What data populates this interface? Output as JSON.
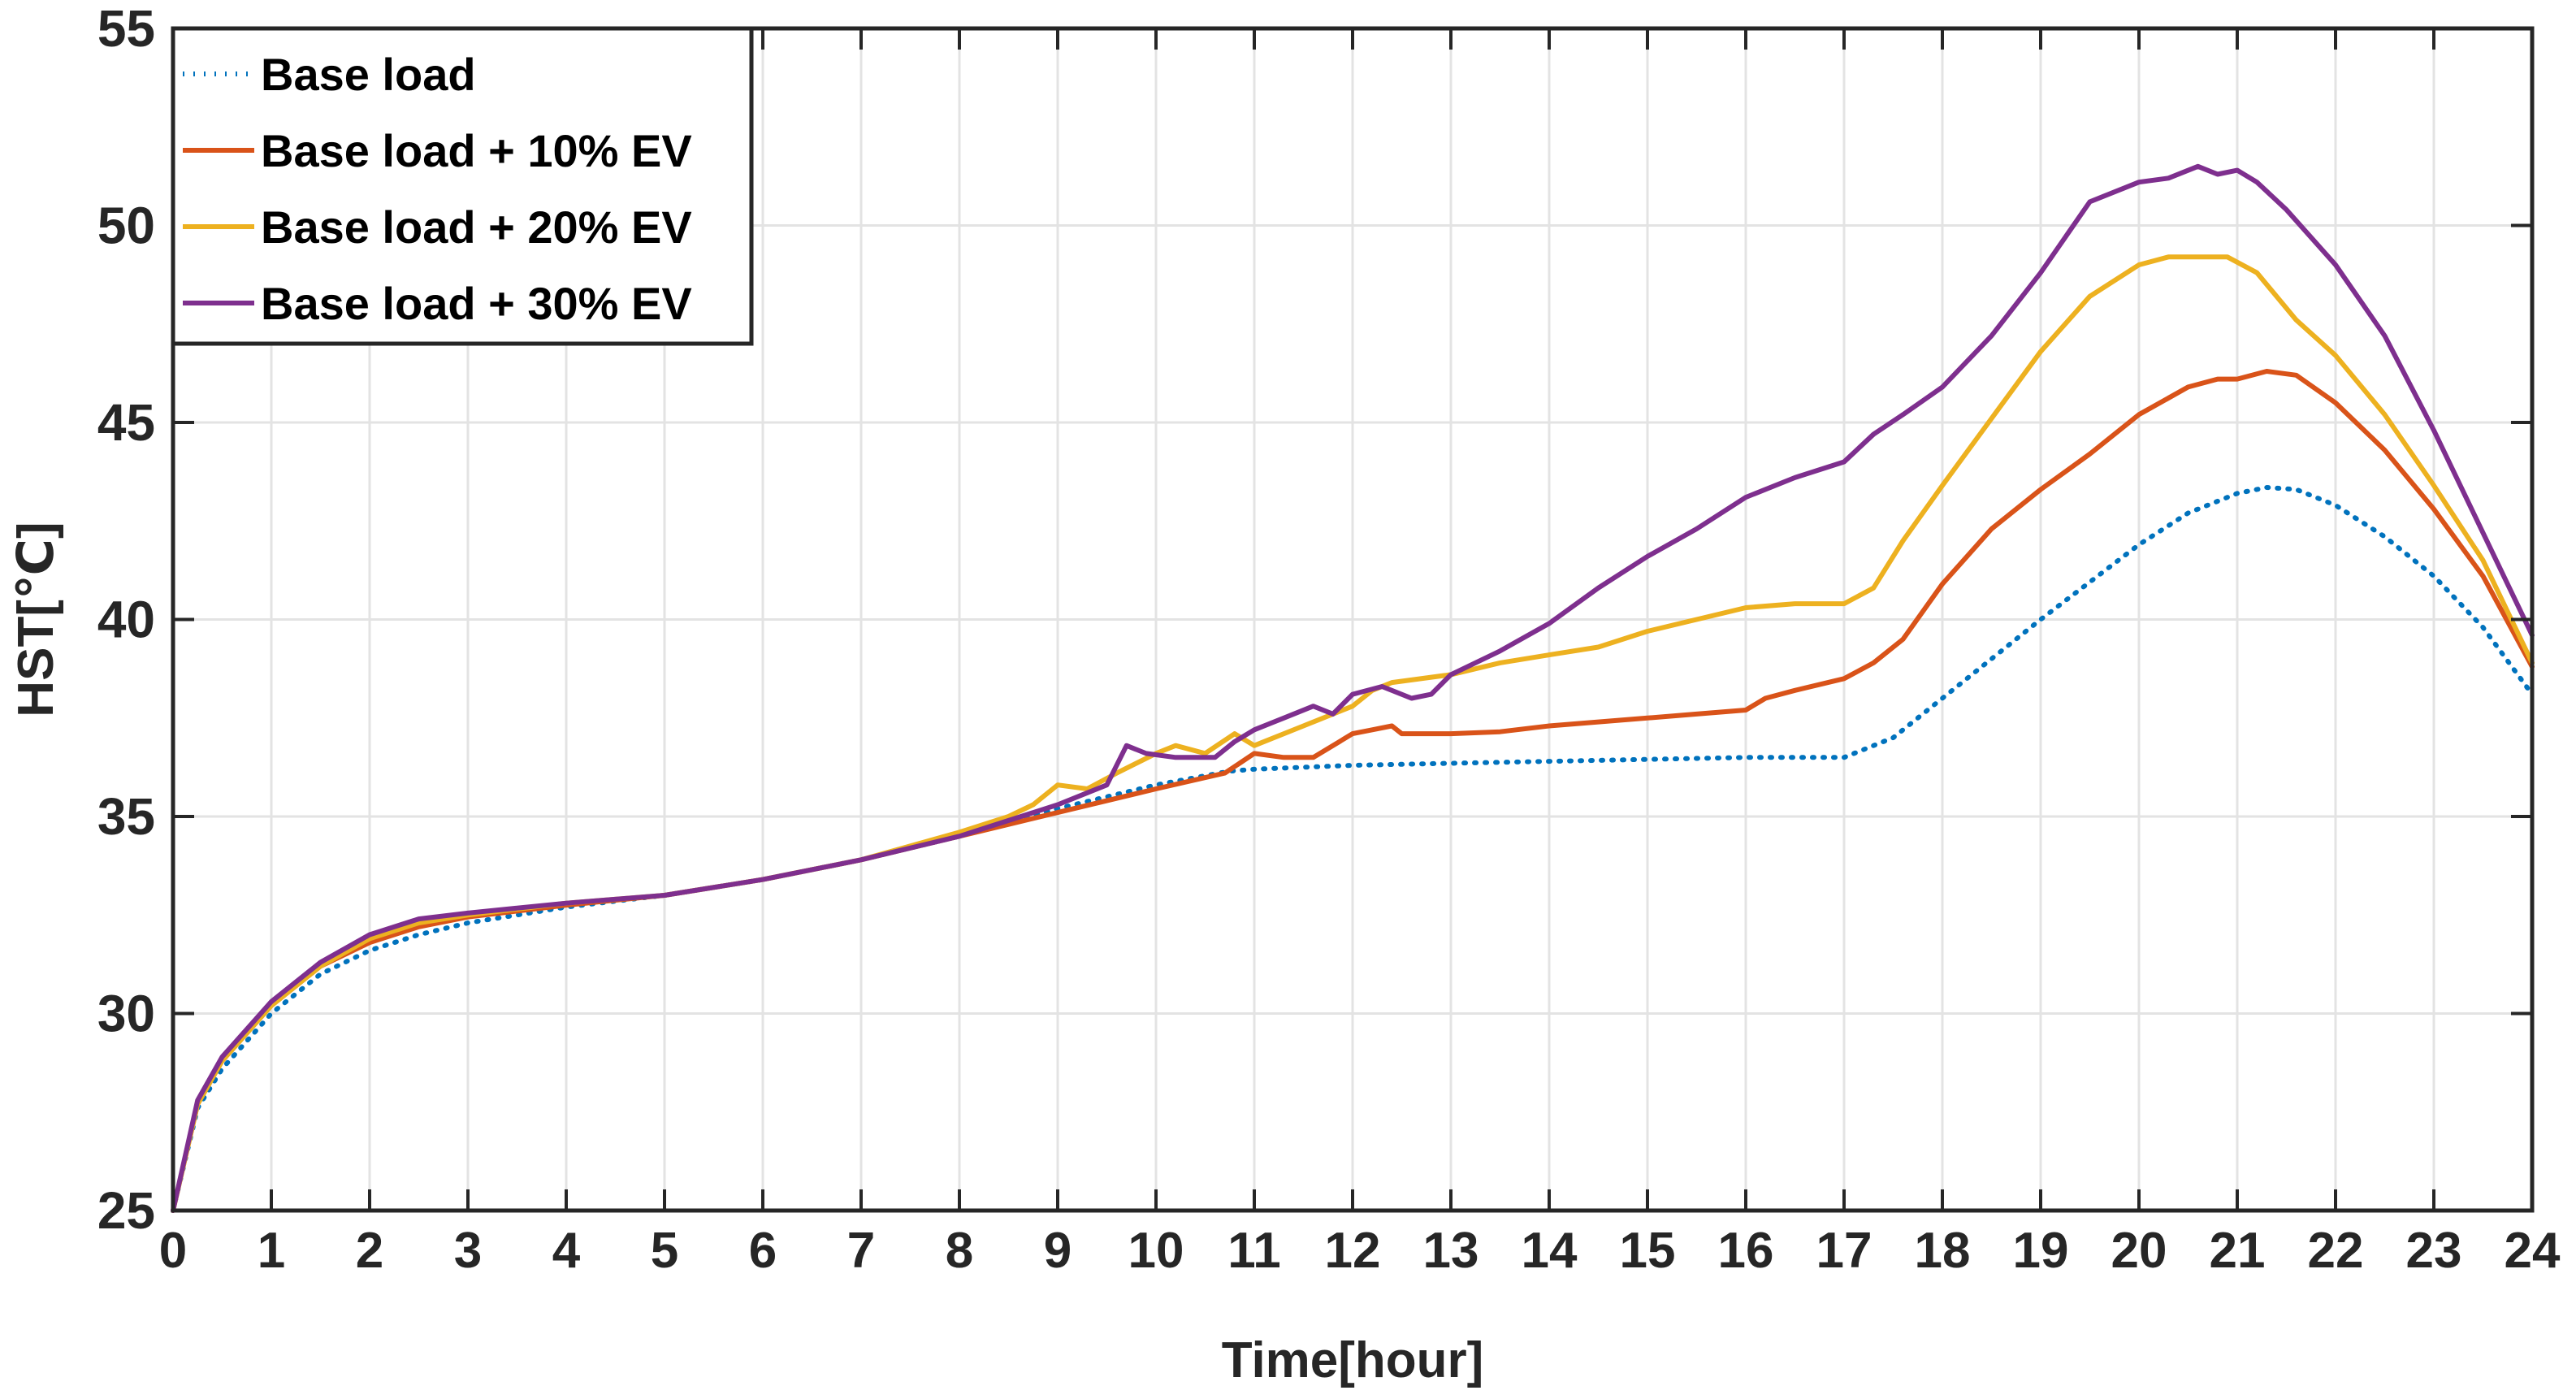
{
  "chart_data": {
    "type": "line",
    "title": "",
    "xlabel": "Time[hour]",
    "ylabel": "HST[℃]",
    "xlim": [
      0,
      24
    ],
    "ylim": [
      25,
      55
    ],
    "xticks": [
      0,
      1,
      2,
      3,
      4,
      5,
      6,
      7,
      8,
      9,
      10,
      11,
      12,
      13,
      14,
      15,
      16,
      17,
      18,
      19,
      20,
      21,
      22,
      23,
      24
    ],
    "yticks": [
      25,
      30,
      35,
      40,
      45,
      50,
      55
    ],
    "grid": true,
    "legend_position": "top-left",
    "series": [
      {
        "name": "Base load",
        "color": "#0072BD",
        "style": "dotted",
        "x": [
          0,
          0.25,
          0.5,
          1,
          1.5,
          2,
          2.5,
          3,
          4,
          5,
          6,
          7,
          8,
          9,
          10,
          10.75,
          11,
          12,
          13,
          14,
          15,
          16,
          17,
          17.5,
          18,
          19,
          20,
          20.5,
          21,
          21.3,
          21.6,
          22,
          22.5,
          23,
          23.5,
          24
        ],
        "y": [
          25,
          27.6,
          28.6,
          30.0,
          31.0,
          31.6,
          32.0,
          32.3,
          32.7,
          33.0,
          33.4,
          33.9,
          34.5,
          35.2,
          35.8,
          36.15,
          36.2,
          36.3,
          36.35,
          36.4,
          36.45,
          36.5,
          36.5,
          37.0,
          38.0,
          40.0,
          41.9,
          42.7,
          43.2,
          43.35,
          43.3,
          42.9,
          42.1,
          41.1,
          39.8,
          38.1
        ]
      },
      {
        "name": "Base load + 10% EV",
        "color": "#D95319",
        "style": "solid",
        "x": [
          0,
          0.25,
          0.5,
          1,
          1.5,
          2,
          2.5,
          3,
          4,
          5,
          6,
          7,
          8,
          9,
          10,
          10.7,
          11,
          11.3,
          11.6,
          12,
          12.2,
          12.4,
          12.5,
          13,
          13.5,
          14,
          14.5,
          15,
          15.5,
          16,
          16.2,
          16.5,
          17,
          17.3,
          17.6,
          18,
          18.5,
          19,
          19.5,
          20,
          20.5,
          20.8,
          21,
          21.3,
          21.6,
          22,
          22.5,
          23,
          23.5,
          24
        ],
        "y": [
          25,
          27.7,
          28.8,
          30.2,
          31.2,
          31.8,
          32.2,
          32.45,
          32.75,
          33.0,
          33.4,
          33.9,
          34.5,
          35.1,
          35.7,
          36.1,
          36.6,
          36.5,
          36.5,
          37.1,
          37.2,
          37.3,
          37.1,
          37.1,
          37.15,
          37.3,
          37.4,
          37.5,
          37.6,
          37.7,
          38.0,
          38.2,
          38.5,
          38.9,
          39.5,
          40.9,
          42.3,
          43.3,
          44.2,
          45.2,
          45.9,
          46.1,
          46.1,
          46.3,
          46.2,
          45.5,
          44.3,
          42.8,
          41.1,
          38.8
        ]
      },
      {
        "name": "Base load + 20% EV",
        "color": "#EDB120",
        "style": "solid",
        "x": [
          0,
          0.25,
          0.5,
          1,
          1.5,
          2,
          2.5,
          3,
          4,
          5,
          6,
          7,
          8,
          8.5,
          8.75,
          9,
          9.3,
          9.6,
          10,
          10.2,
          10.5,
          10.8,
          11,
          11.5,
          12,
          12.2,
          12.4,
          13,
          13.5,
          14,
          14.5,
          15,
          15.5,
          16,
          16.5,
          17,
          17.3,
          17.6,
          18,
          18.5,
          19,
          19.5,
          20,
          20.3,
          20.6,
          20.9,
          21.2,
          21.6,
          22,
          22.5,
          23,
          23.5,
          24
        ],
        "y": [
          25,
          27.7,
          28.8,
          30.2,
          31.2,
          31.9,
          32.3,
          32.5,
          32.8,
          33.0,
          33.4,
          33.9,
          34.6,
          35.0,
          35.3,
          35.8,
          35.7,
          36.1,
          36.6,
          36.8,
          36.6,
          37.1,
          36.8,
          37.3,
          37.8,
          38.2,
          38.4,
          38.6,
          38.9,
          39.1,
          39.3,
          39.7,
          40.0,
          40.3,
          40.4,
          40.4,
          40.8,
          42.0,
          43.4,
          45.1,
          46.8,
          48.2,
          49.0,
          49.2,
          49.2,
          49.2,
          48.8,
          47.6,
          46.7,
          45.2,
          43.4,
          41.5,
          38.9
        ]
      },
      {
        "name": "Base load + 30% EV",
        "color": "#7E2F8E",
        "style": "solid",
        "x": [
          0,
          0.25,
          0.5,
          1,
          1.5,
          2,
          2.5,
          3,
          4,
          5,
          6,
          7,
          8,
          9,
          9.5,
          9.7,
          9.9,
          10.2,
          10.6,
          10.8,
          11,
          11.3,
          11.6,
          11.8,
          12,
          12.3,
          12.6,
          12.8,
          13,
          13.5,
          14,
          14.5,
          15,
          15.5,
          16,
          16.5,
          17,
          17.3,
          17.6,
          18,
          18.5,
          19,
          19.5,
          20,
          20.3,
          20.6,
          20.8,
          21,
          21.2,
          21.5,
          22,
          22.5,
          23,
          23.5,
          24
        ],
        "y": [
          25,
          27.8,
          28.9,
          30.3,
          31.3,
          32.0,
          32.4,
          32.55,
          32.8,
          33.0,
          33.4,
          33.9,
          34.5,
          35.3,
          35.8,
          36.8,
          36.6,
          36.5,
          36.5,
          36.9,
          37.2,
          37.5,
          37.8,
          37.6,
          38.1,
          38.3,
          38.0,
          38.1,
          38.6,
          39.2,
          39.9,
          40.8,
          41.6,
          42.3,
          43.1,
          43.6,
          44.0,
          44.7,
          45.2,
          45.9,
          47.2,
          48.8,
          50.6,
          51.1,
          51.2,
          51.5,
          51.3,
          51.4,
          51.1,
          50.4,
          49.0,
          47.2,
          44.8,
          42.2,
          39.6
        ]
      }
    ]
  }
}
